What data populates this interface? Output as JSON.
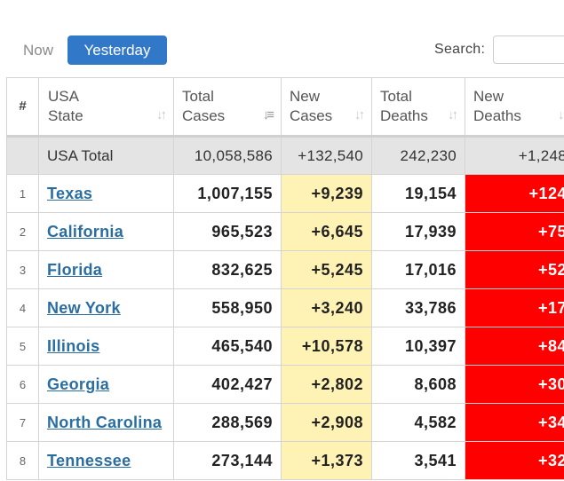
{
  "tabs": {
    "now": "Now",
    "yesterday": "Yesterday"
  },
  "search": {
    "label": "Search:",
    "value": ""
  },
  "columns": {
    "rank": "#",
    "state": [
      "USA",
      "State"
    ],
    "total_cases": [
      "Total",
      "Cases"
    ],
    "new_cases": [
      "New",
      "Cases"
    ],
    "total_deaths": [
      "Total",
      "Deaths"
    ],
    "new_deaths": [
      "New",
      "Deaths"
    ]
  },
  "total_row": {
    "state": "USA Total",
    "total_cases": "10,058,586",
    "new_cases": "+132,540",
    "total_deaths": "242,230",
    "new_deaths": "+1,248"
  },
  "rows": [
    {
      "rank": "1",
      "state": "Texas",
      "total_cases": "1,007,155",
      "new_cases": "+9,239",
      "total_deaths": "19,154",
      "new_deaths": "+124"
    },
    {
      "rank": "2",
      "state": "California",
      "total_cases": "965,523",
      "new_cases": "+6,645",
      "total_deaths": "17,939",
      "new_deaths": "+75"
    },
    {
      "rank": "3",
      "state": "Florida",
      "total_cases": "832,625",
      "new_cases": "+5,245",
      "total_deaths": "17,016",
      "new_deaths": "+52"
    },
    {
      "rank": "4",
      "state": "New York",
      "total_cases": "558,950",
      "new_cases": "+3,240",
      "total_deaths": "33,786",
      "new_deaths": "+17"
    },
    {
      "rank": "5",
      "state": "Illinois",
      "total_cases": "465,540",
      "new_cases": "+10,578",
      "total_deaths": "10,397",
      "new_deaths": "+84"
    },
    {
      "rank": "6",
      "state": "Georgia",
      "total_cases": "402,427",
      "new_cases": "+2,802",
      "total_deaths": "8,608",
      "new_deaths": "+30"
    },
    {
      "rank": "7",
      "state": "North Carolina",
      "total_cases": "288,569",
      "new_cases": "+2,908",
      "total_deaths": "4,582",
      "new_deaths": "+34"
    },
    {
      "rank": "8",
      "state": "Tennessee",
      "total_cases": "273,144",
      "new_cases": "+1,373",
      "total_deaths": "3,541",
      "new_deaths": "+32"
    }
  ],
  "colors": {
    "accent": "#3278c8",
    "link": "#2a6ea1",
    "new_cases_bg": "#fff2b5",
    "new_deaths_bg": "#ff0000",
    "total_row_bg": "#e4e4e4"
  }
}
